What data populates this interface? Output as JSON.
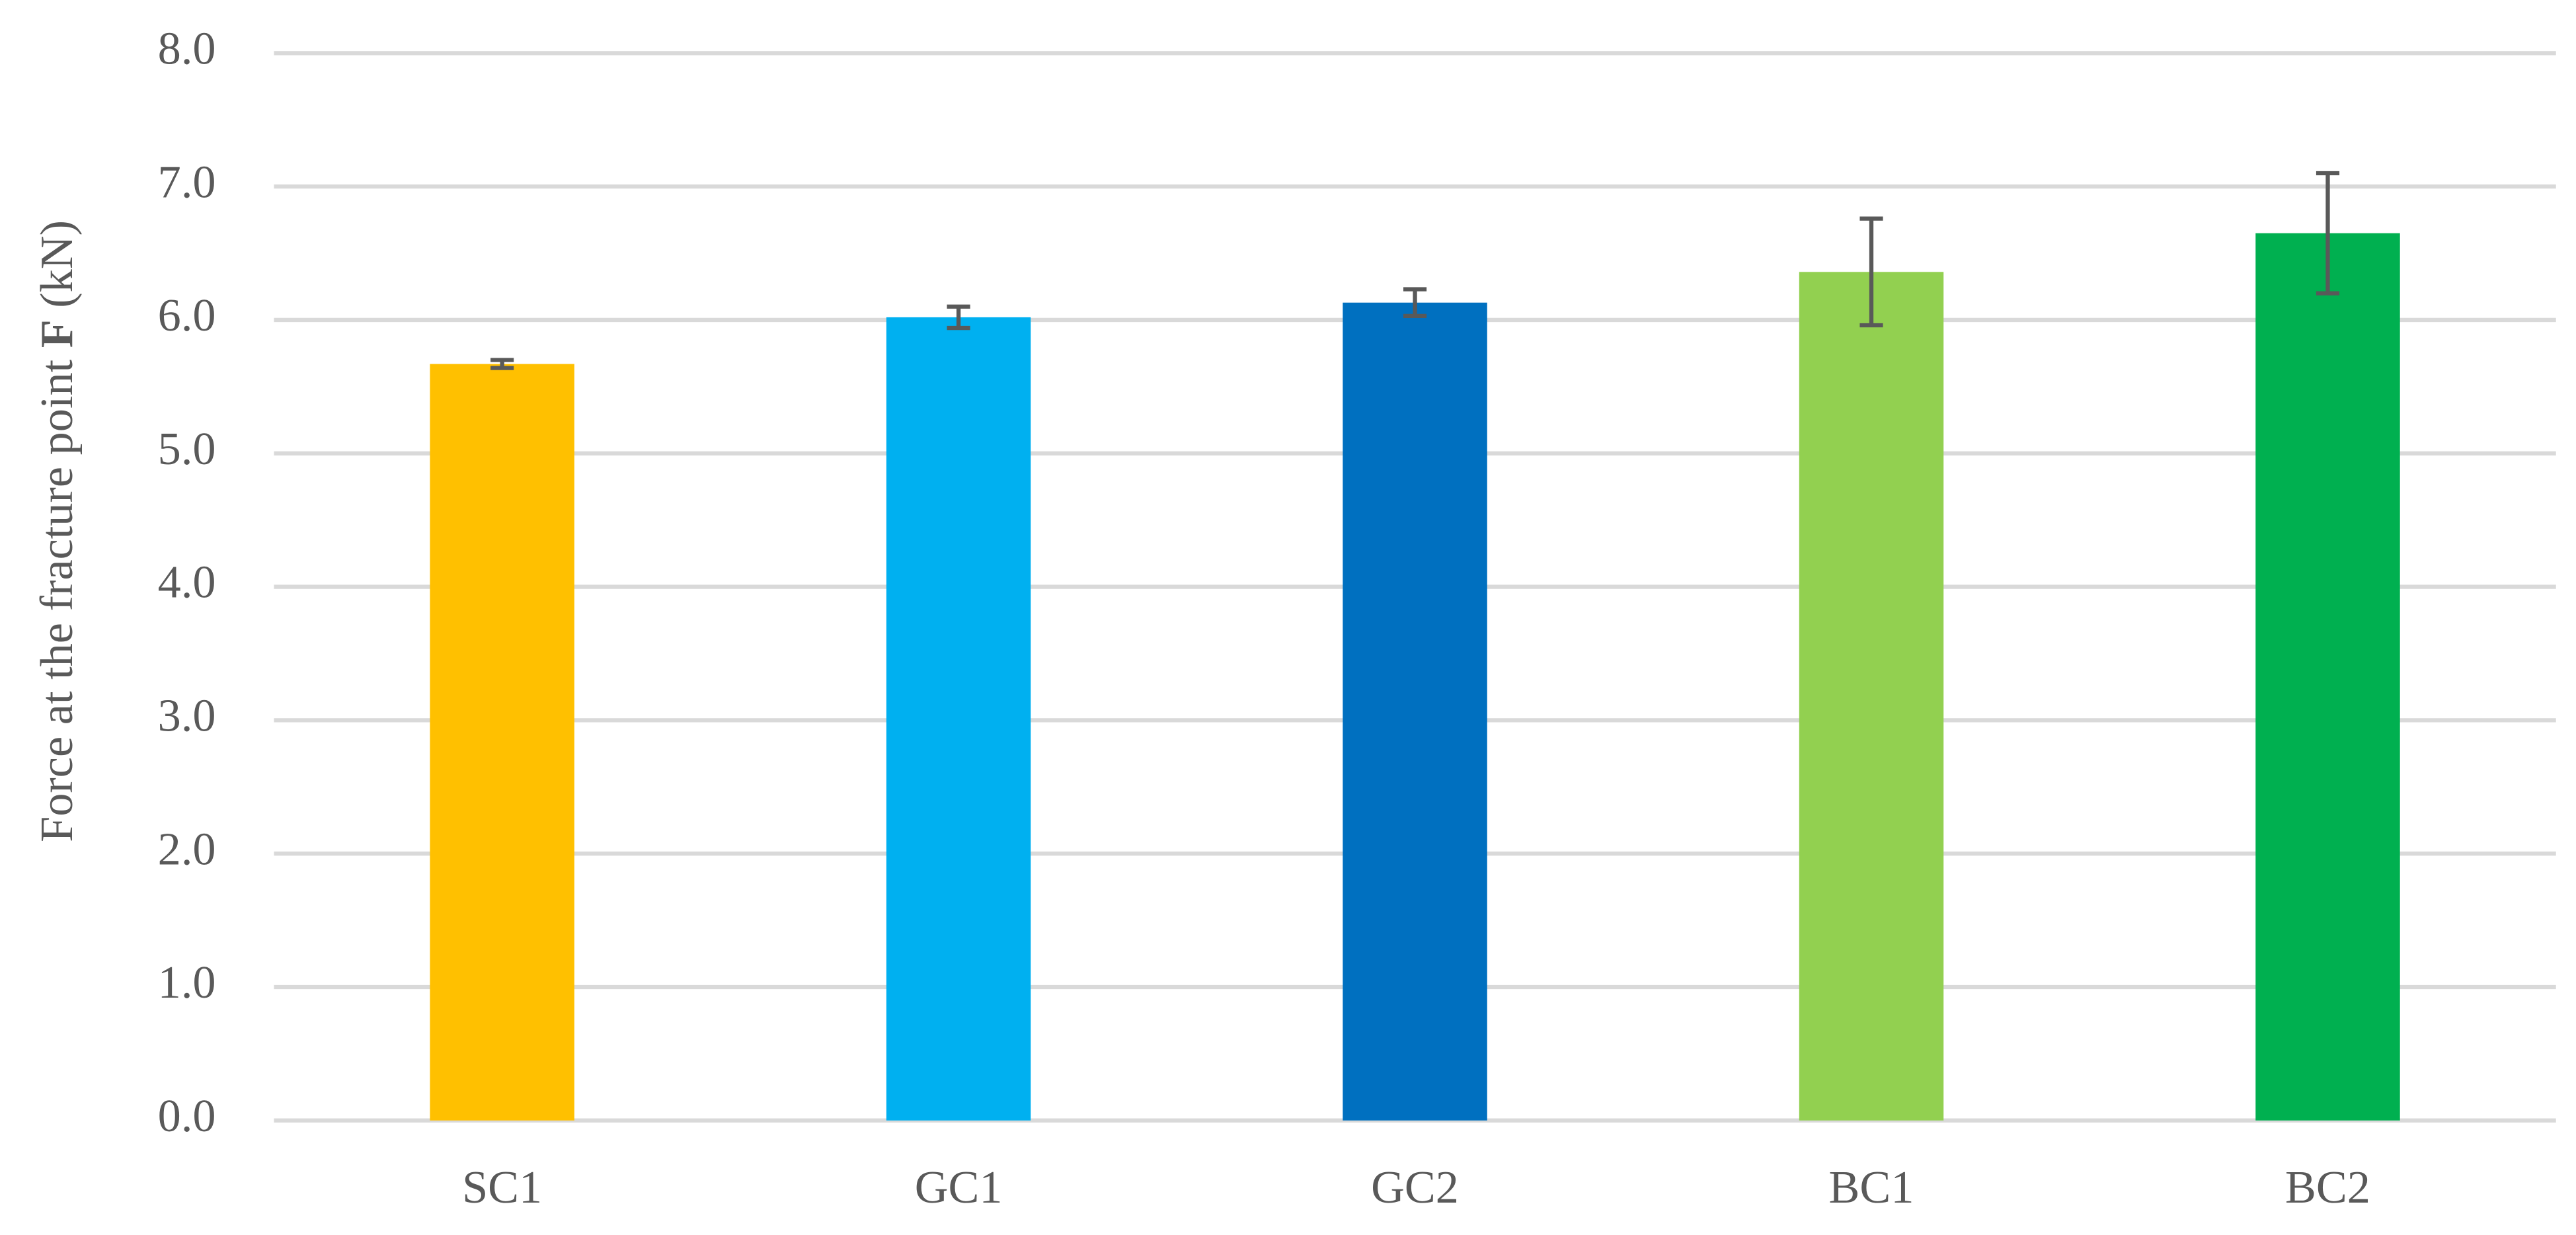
{
  "chart_data": {
    "type": "bar",
    "y_label": [
      "Force at the fracture point",
      "F",
      "(kN)"
    ],
    "categories": [
      "SC1",
      "GC1",
      "GC2",
      "BC1",
      "BC2"
    ],
    "values": [
      5.67,
      6.02,
      6.13,
      6.36,
      6.65
    ],
    "errors": [
      0.03,
      0.08,
      0.1,
      0.4,
      0.45
    ],
    "colors": [
      "#ffc000",
      "#00b0f0",
      "#0070c0",
      "#92d050",
      "#00b050"
    ],
    "ylim": [
      0,
      8
    ],
    "yticks": [
      {
        "value": 0,
        "label": "0.0"
      },
      {
        "value": 1,
        "label": "1.0"
      },
      {
        "value": 2,
        "label": "2.0"
      },
      {
        "value": 3,
        "label": "3.0"
      },
      {
        "value": 4,
        "label": "4.0"
      },
      {
        "value": 5,
        "label": "5.0"
      },
      {
        "value": 6,
        "label": "6.0"
      },
      {
        "value": 7,
        "label": "7.0"
      },
      {
        "value": 8,
        "label": "8.0"
      }
    ],
    "grid": true
  }
}
